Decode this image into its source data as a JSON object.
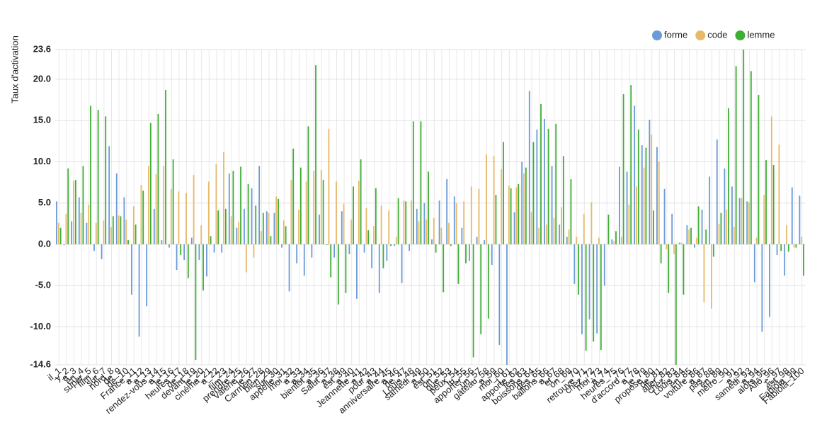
{
  "chart_data": {
    "type": "bar",
    "y_label": "Taux d'activation",
    "legend": "top-right",
    "grid": true,
    "ylim": [
      -14.6,
      23.6
    ],
    "yticks": [
      {
        "value": -14.6,
        "label": "-14.6"
      },
      {
        "value": -10,
        "label": "-10.0"
      },
      {
        "value": -5,
        "label": "-5.0"
      },
      {
        "value": 0,
        "label": "0.0"
      },
      {
        "value": 5,
        "label": "5.0"
      },
      {
        "value": 10,
        "label": "10.0"
      },
      {
        "value": 15,
        "label": "15.0"
      },
      {
        "value": 20,
        "label": "20.0"
      },
      {
        "value": 23.6,
        "label": "23.6"
      }
    ],
    "categories": [
      "il_1",
      "y_2",
      "a_3",
      "en_4",
      "super_5",
      "film_6",
      "sur_7",
      "nord_8",
      "de_9",
      "de_10",
      "France_11",
      "a_12",
      "a_13",
      "rendez-vous_14",
      "a_15",
      "le_16",
      "heures_17",
      "de_18",
      "devant_19",
      "le_20",
      "cinéma_21",
      "a_22",
      "_23",
      "film_24",
      "prendre_25",
      "Valérie_26",
      "le_27",
      "Carmen_28",
      "bien_29",
      "sur_30",
      "appelle_31",
      "moi_32",
      "a_33",
      "a_34",
      "bientôt_35",
      "a_36",
      "Salut_37",
      "a_38",
      "est_39",
      "a_40",
      "Jeannette_41",
      "a_42",
      "pour_43",
      "a_44",
      "anniversaire_45",
      "a_46",
      "de_47",
      "Louis_48",
      "samedi_49",
      "a_50",
      "est_51",
      "on_52",
      "que_53",
      "peux_54",
      "tu_55",
      "apporter_56",
      "un_57",
      "gâteau_58",
      "a_59",
      "moi_60",
      "j_61",
      "apporte_62",
      "les_63",
      "boissons_64",
      "des_65",
      "ballons_66",
      "a_67",
      "et_68",
      "on_69",
      "_70",
      "retrouve_71",
      "chez_72",
      "moi_73",
      "à_74",
      "heures_75",
      "_76",
      "d'accord_77",
      "a_78",
      "je_79",
      "propose_80",
      "de_81",
      "aller_82",
      "chez_83",
      "Louis_84",
      "en_85",
      "voiture_86",
      "a_87",
      "pas_88",
      "en_89",
      "métro_90",
      "_91",
      "a_92",
      "samedi_93",
      "a_94",
      "alors_95",
      "Allô_96",
      "c_97",
      "est_98",
      "Fabiola_99",
      "Fabiola_100"
    ],
    "series": [
      {
        "name": "forme",
        "color": "#6b9bd6",
        "values": [
          5.2,
          -0.1,
          2.8,
          5.7,
          2.6,
          -0.8,
          -1.8,
          11.9,
          8.6,
          5.7,
          -6.1,
          -11.2,
          -7.5,
          4.3,
          0.5,
          -0.4,
          -3.1,
          -1.9,
          0.8,
          -1.9,
          -3.9,
          -1.0,
          -1.0,
          8.6,
          2.0,
          4.3,
          6.8,
          9.5,
          4.0,
          3.8,
          -0.4,
          -5.7,
          -2.3,
          -3.8,
          -1.6,
          3.6,
          -0.1,
          -1.6,
          4.0,
          -1.2,
          -6.6,
          -1.0,
          -2.9,
          -5.9,
          -2.0,
          -0.2,
          -4.7,
          -0.8,
          4.3,
          5.0,
          0.6,
          5.3,
          7.9,
          5.8,
          2.0,
          -2.0,
          0.9,
          0.5,
          -2.5,
          -12.2,
          -14.6,
          3.9,
          10.0,
          18.6,
          13.9,
          15.2,
          9.5,
          2.4,
          0.9,
          -4.8,
          -10.9,
          -9.1,
          -10.8,
          -5.0,
          0.6,
          9.4,
          8.8,
          16.8,
          12.0,
          15.1,
          11.8,
          6.7,
          3.7,
          0.2,
          2.3,
          -0.4,
          4.2,
          8.2,
          12.7,
          9.2,
          7.0,
          5.6,
          5.2,
          -4.6,
          -10.6,
          -8.8,
          -1.3,
          -3.8,
          6.9,
          5.9
        ]
      },
      {
        "name": "code",
        "color": "#e9b96a",
        "values": [
          2.6,
          3.7,
          7.7,
          3.8,
          4.8,
          2.6,
          2.9,
          2.1,
          3.5,
          3.0,
          4.6,
          7.2,
          9.5,
          8.5,
          9.5,
          6.7,
          6.4,
          6.2,
          8.4,
          2.3,
          7.6,
          9.7,
          11.2,
          3.4,
          2.7,
          -3.4,
          -1.6,
          1.6,
          3.8,
          5.8,
          2.9,
          7.8,
          4.2,
          7.6,
          8.9,
          9.0,
          14.0,
          7.6,
          4.9,
          3.0,
          7.7,
          4.4,
          2.2,
          4.7,
          4.1,
          0.9,
          5.3,
          5.3,
          2.8,
          3.0,
          3.2,
          2.0,
          2.6,
          5.0,
          5.2,
          7.0,
          6.7,
          10.9,
          10.7,
          9.1,
          7.1,
          6.9,
          8.6,
          3.9,
          2.0,
          2.4,
          3.2,
          4.5,
          1.8,
          0.9,
          3.7,
          5.1,
          0.8,
          0.0,
          0.4,
          0.9,
          4.8,
          7.0,
          9.3,
          13.3,
          10.0,
          -0.6,
          -1.2,
          0.2,
          1.8,
          0.8,
          -7.0,
          -7.8,
          2.5,
          4.2,
          2.1,
          5.6,
          5.1,
          0.8,
          6.0,
          15.5,
          12.1,
          2.3,
          -0.4,
          0.9
        ]
      },
      {
        "name": "lemme",
        "color": "#3fae35",
        "values": [
          2.0,
          9.2,
          7.8,
          9.5,
          16.8,
          16.3,
          15.5,
          3.4,
          3.4,
          0.5,
          2.4,
          6.5,
          14.7,
          15.8,
          18.7,
          10.3,
          -1.3,
          -4.1,
          -14.0,
          -5.6,
          1.0,
          4.1,
          4.3,
          8.9,
          9.4,
          7.3,
          4.7,
          3.8,
          1.0,
          5.5,
          2.2,
          11.6,
          9.3,
          14.3,
          21.7,
          7.8,
          -4.0,
          -7.3,
          -5.9,
          7.0,
          10.3,
          1.7,
          6.8,
          -2.9,
          -0.2,
          5.6,
          5.2,
          14.9,
          14.9,
          8.8,
          -1.0,
          -5.8,
          -0.2,
          -4.8,
          -2.3,
          -13.7,
          -10.9,
          -9.0,
          6.0,
          12.4,
          6.8,
          7.3,
          9.3,
          12.4,
          17.0,
          14.0,
          14.6,
          10.7,
          7.9,
          -6.1,
          -12.9,
          -11.8,
          -12.8,
          3.6,
          1.6,
          18.2,
          19.3,
          13.9,
          11.7,
          4.1,
          -2.3,
          -5.9,
          -14.6,
          -6.1,
          2.0,
          4.6,
          1.8,
          -1.5,
          3.8,
          16.5,
          21.6,
          23.6,
          21.0,
          18.1,
          10.2,
          9.6,
          -0.8,
          -0.9,
          -0.4,
          -3.8
        ]
      }
    ]
  }
}
